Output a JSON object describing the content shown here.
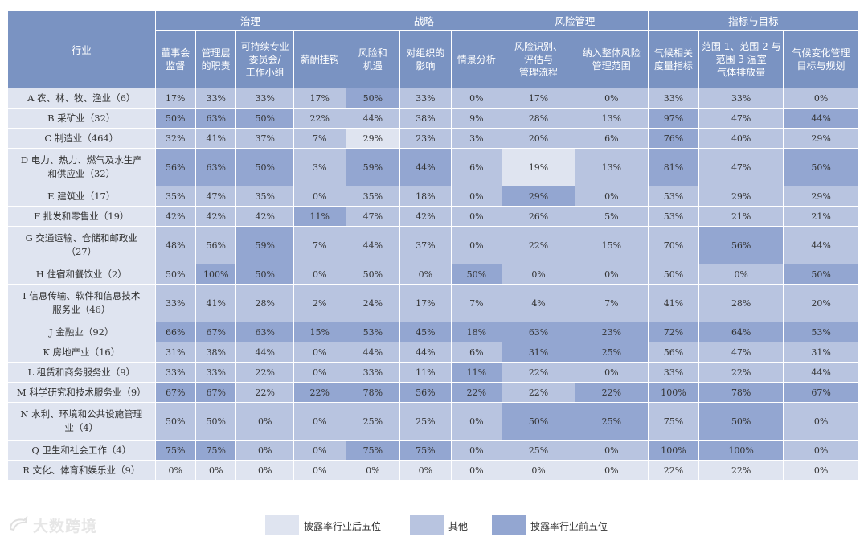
{
  "table": {
    "industry_header": "行业",
    "groups": [
      {
        "name": "治理",
        "span": 4
      },
      {
        "name": "战略",
        "span": 3
      },
      {
        "name": "风险管理",
        "span": 2
      },
      {
        "name": "指标与目标",
        "span": 3
      }
    ],
    "columns": [
      [
        "董事会",
        "监督"
      ],
      [
        "管理层",
        "的职责"
      ],
      [
        "可持续专业",
        "委员会/",
        "工作小组"
      ],
      [
        "薪酬挂钩"
      ],
      [
        "风险和",
        "机遇"
      ],
      [
        "对组织的",
        "影响"
      ],
      [
        "情景分析"
      ],
      [
        "风险识别、",
        "评估与",
        "管理流程"
      ],
      [
        "纳入整体风险",
        "管理范围"
      ],
      [
        "气候相关",
        "度量指标"
      ],
      [
        "范围 1、范围 2 与",
        "范围 3 温室",
        "气体排放量"
      ],
      [
        "气候变化管理",
        "目标与规划"
      ]
    ],
    "rows": [
      {
        "industry": [
          "A 农、林、牧、渔业（6）"
        ],
        "values": [
          "17%",
          "33%",
          "33%",
          "17%",
          "50%",
          "33%",
          "0%",
          "17%",
          "0%",
          "33%",
          "33%",
          "0%"
        ],
        "levels": [
          1,
          1,
          1,
          1,
          2,
          1,
          1,
          1,
          1,
          1,
          1,
          1
        ]
      },
      {
        "industry": [
          "B 采矿业（32）"
        ],
        "values": [
          "50%",
          "63%",
          "50%",
          "22%",
          "44%",
          "38%",
          "9%",
          "28%",
          "13%",
          "97%",
          "47%",
          "44%"
        ],
        "levels": [
          2,
          2,
          2,
          1,
          1,
          1,
          1,
          1,
          1,
          2,
          1,
          2
        ]
      },
      {
        "industry": [
          "C 制造业（464）"
        ],
        "values": [
          "32%",
          "41%",
          "37%",
          "7%",
          "29%",
          "23%",
          "3%",
          "20%",
          "6%",
          "76%",
          "40%",
          "29%"
        ],
        "levels": [
          1,
          1,
          1,
          1,
          0,
          1,
          1,
          1,
          1,
          2,
          1,
          1
        ]
      },
      {
        "industry": [
          "D 电力、热力、燃气及水生产",
          "和供应业（32）"
        ],
        "values": [
          "56%",
          "63%",
          "50%",
          "3%",
          "59%",
          "44%",
          "6%",
          "19%",
          "13%",
          "81%",
          "47%",
          "50%"
        ],
        "levels": [
          2,
          2,
          2,
          1,
          2,
          2,
          1,
          0,
          1,
          2,
          1,
          2
        ]
      },
      {
        "industry": [
          "E 建筑业（17）"
        ],
        "values": [
          "35%",
          "47%",
          "35%",
          "0%",
          "35%",
          "18%",
          "0%",
          "29%",
          "0%",
          "53%",
          "29%",
          "29%"
        ],
        "levels": [
          1,
          1,
          1,
          1,
          1,
          1,
          1,
          2,
          1,
          1,
          1,
          1
        ]
      },
      {
        "industry": [
          "F 批发和零售业（19）"
        ],
        "values": [
          "42%",
          "42%",
          "42%",
          "11%",
          "47%",
          "42%",
          "0%",
          "26%",
          "5%",
          "53%",
          "21%",
          "21%"
        ],
        "levels": [
          1,
          1,
          1,
          2,
          1,
          1,
          1,
          1,
          1,
          1,
          1,
          1
        ]
      },
      {
        "industry": [
          "G 交通运输、仓储和邮政业",
          "（27）"
        ],
        "values": [
          "48%",
          "56%",
          "59%",
          "7%",
          "44%",
          "37%",
          "0%",
          "22%",
          "15%",
          "70%",
          "56%",
          "44%"
        ],
        "levels": [
          1,
          1,
          2,
          1,
          1,
          1,
          1,
          1,
          1,
          1,
          2,
          1
        ]
      },
      {
        "industry": [
          "H 住宿和餐饮业（2）"
        ],
        "values": [
          "50%",
          "100%",
          "50%",
          "0%",
          "50%",
          "0%",
          "50%",
          "0%",
          "0%",
          "50%",
          "0%",
          "50%"
        ],
        "levels": [
          1,
          2,
          2,
          1,
          1,
          1,
          2,
          1,
          1,
          1,
          1,
          2
        ]
      },
      {
        "industry": [
          "I 信息传输、软件和信息技术",
          "服务业（46）"
        ],
        "values": [
          "33%",
          "41%",
          "28%",
          "2%",
          "24%",
          "17%",
          "7%",
          "4%",
          "7%",
          "41%",
          "28%",
          "20%"
        ],
        "levels": [
          1,
          1,
          1,
          1,
          1,
          1,
          1,
          1,
          1,
          1,
          1,
          1
        ]
      },
      {
        "industry": [
          "J 金融业（92）"
        ],
        "values": [
          "66%",
          "67%",
          "63%",
          "15%",
          "53%",
          "45%",
          "18%",
          "63%",
          "23%",
          "72%",
          "64%",
          "53%"
        ],
        "levels": [
          2,
          2,
          2,
          2,
          2,
          2,
          2,
          2,
          2,
          2,
          2,
          2
        ]
      },
      {
        "industry": [
          "K 房地产业（16）"
        ],
        "values": [
          "31%",
          "38%",
          "44%",
          "0%",
          "44%",
          "44%",
          "6%",
          "31%",
          "25%",
          "56%",
          "47%",
          "31%"
        ],
        "levels": [
          1,
          1,
          1,
          1,
          1,
          1,
          1,
          2,
          2,
          1,
          1,
          1
        ]
      },
      {
        "industry": [
          "L 租赁和商务服务业（9）"
        ],
        "values": [
          "33%",
          "33%",
          "22%",
          "0%",
          "33%",
          "11%",
          "11%",
          "22%",
          "0%",
          "33%",
          "22%",
          "44%"
        ],
        "levels": [
          1,
          1,
          1,
          1,
          1,
          1,
          2,
          1,
          1,
          1,
          1,
          1
        ]
      },
      {
        "industry": [
          "M 科学研究和技术服务业（9）"
        ],
        "values": [
          "67%",
          "67%",
          "22%",
          "22%",
          "78%",
          "56%",
          "22%",
          "22%",
          "22%",
          "100%",
          "78%",
          "67%"
        ],
        "levels": [
          2,
          2,
          1,
          2,
          2,
          2,
          2,
          1,
          2,
          2,
          2,
          2
        ]
      },
      {
        "industry": [
          "N 水利、环境和公共设施管理",
          "业（4）"
        ],
        "values": [
          "50%",
          "50%",
          "0%",
          "0%",
          "25%",
          "25%",
          "0%",
          "50%",
          "25%",
          "75%",
          "50%",
          "0%"
        ],
        "levels": [
          1,
          1,
          1,
          1,
          1,
          1,
          1,
          2,
          2,
          1,
          2,
          1
        ]
      },
      {
        "industry": [
          "Q 卫生和社会工作（4）"
        ],
        "values": [
          "75%",
          "75%",
          "0%",
          "0%",
          "75%",
          "75%",
          "0%",
          "25%",
          "0%",
          "100%",
          "100%",
          "0%"
        ],
        "levels": [
          2,
          2,
          1,
          1,
          2,
          2,
          1,
          1,
          1,
          2,
          2,
          1
        ]
      },
      {
        "industry": [
          "R 文化、体育和娱乐业（9）"
        ],
        "values": [
          "0%",
          "0%",
          "0%",
          "0%",
          "0%",
          "0%",
          "0%",
          "0%",
          "0%",
          "22%",
          "22%",
          "0%"
        ],
        "levels": [
          0,
          0,
          0,
          0,
          0,
          0,
          0,
          0,
          0,
          0,
          0,
          0
        ]
      }
    ]
  },
  "legend": [
    {
      "label": "披露率行业后五位",
      "color": "#dfe4f0"
    },
    {
      "label": "其他",
      "color": "#b8c4e0"
    },
    {
      "label": "披露率行业前五位",
      "color": "#93a6d1"
    }
  ],
  "watermark": "大数跨境",
  "colors": {
    "header": "#7a93c2",
    "bottom": "#dfe4f0",
    "other": "#b8c4e0",
    "top": "#93a6d1"
  }
}
